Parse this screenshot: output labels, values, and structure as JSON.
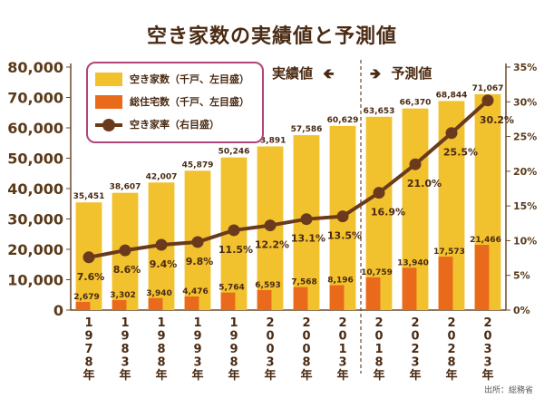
{
  "title": "空き家数の実績値と予測値",
  "phase_actual": "実績値",
  "phase_forecast": "予測値",
  "source": "出所：総務省",
  "colors": {
    "vacant": "#f2c12e",
    "housing": "#ea6a1c",
    "rate": "#6b3a1c"
  },
  "legend": [
    {
      "label": "空き家数（千戸、左目盛）",
      "kind": "bar",
      "color": "#f2c12e"
    },
    {
      "label": "総住宅数（千戸、左目盛）",
      "kind": "bar",
      "color": "#ea6a1c"
    },
    {
      "label": "空き家率（右目盛）",
      "kind": "line",
      "color": "#6b3a1c"
    }
  ],
  "chart_data": {
    "type": "bar",
    "title": "空き家数の実績値と予測値",
    "categories": [
      "1978年",
      "1983年",
      "1988年",
      "1993年",
      "1998年",
      "2003年",
      "2008年",
      "2013年",
      "2018年",
      "2023年",
      "2028年",
      "2033年"
    ],
    "series": [
      {
        "name": "空き家数（千戸、左目盛）",
        "type": "bar",
        "values": [
          35451,
          38607,
          42007,
          45879,
          50246,
          53891,
          57586,
          60629,
          63653,
          66370,
          68844,
          71067
        ],
        "labels": [
          "35,451",
          "38,607",
          "42,007",
          "45,879",
          "50,246",
          "53,891",
          "57,586",
          "60,629",
          "63,653",
          "66,370",
          "68,844",
          "71,067"
        ]
      },
      {
        "name": "総住宅数（千戸、左目盛）",
        "type": "bar",
        "values": [
          2679,
          3302,
          3940,
          4476,
          5764,
          6593,
          7568,
          8196,
          10759,
          13940,
          17573,
          21466
        ],
        "labels": [
          "2,679",
          "3,302",
          "3,940",
          "4,476",
          "5,764",
          "6,593",
          "7,568",
          "8,196",
          "10,759",
          "13,940",
          "17,573",
          "21,466"
        ]
      },
      {
        "name": "空き家率（右目盛）",
        "type": "line",
        "axis": "right",
        "values": [
          7.6,
          8.6,
          9.4,
          9.8,
          11.5,
          12.2,
          13.1,
          13.5,
          16.9,
          21.0,
          25.5,
          30.2
        ],
        "labels": [
          "7.6%",
          "8.6%",
          "9.4%",
          "9.8%",
          "11.5%",
          "12.2%",
          "13.1%",
          "13.5%",
          "16.9%",
          "21.0%",
          "25.5%",
          "30.2%"
        ]
      }
    ],
    "y_left": {
      "ylim": [
        0,
        80000
      ],
      "ticks": [
        "0",
        "10,000",
        "20,000",
        "30,000",
        "40,000",
        "50,000",
        "60,000",
        "70,000",
        "80,000"
      ]
    },
    "y_right": {
      "ylim": [
        0,
        35
      ],
      "ticks": [
        "0%",
        "5%",
        "10%",
        "15%",
        "20%",
        "25%",
        "30%",
        "35%"
      ]
    },
    "grid": false,
    "legend_position": "top-left",
    "forecast_divider_after": "2013年"
  }
}
